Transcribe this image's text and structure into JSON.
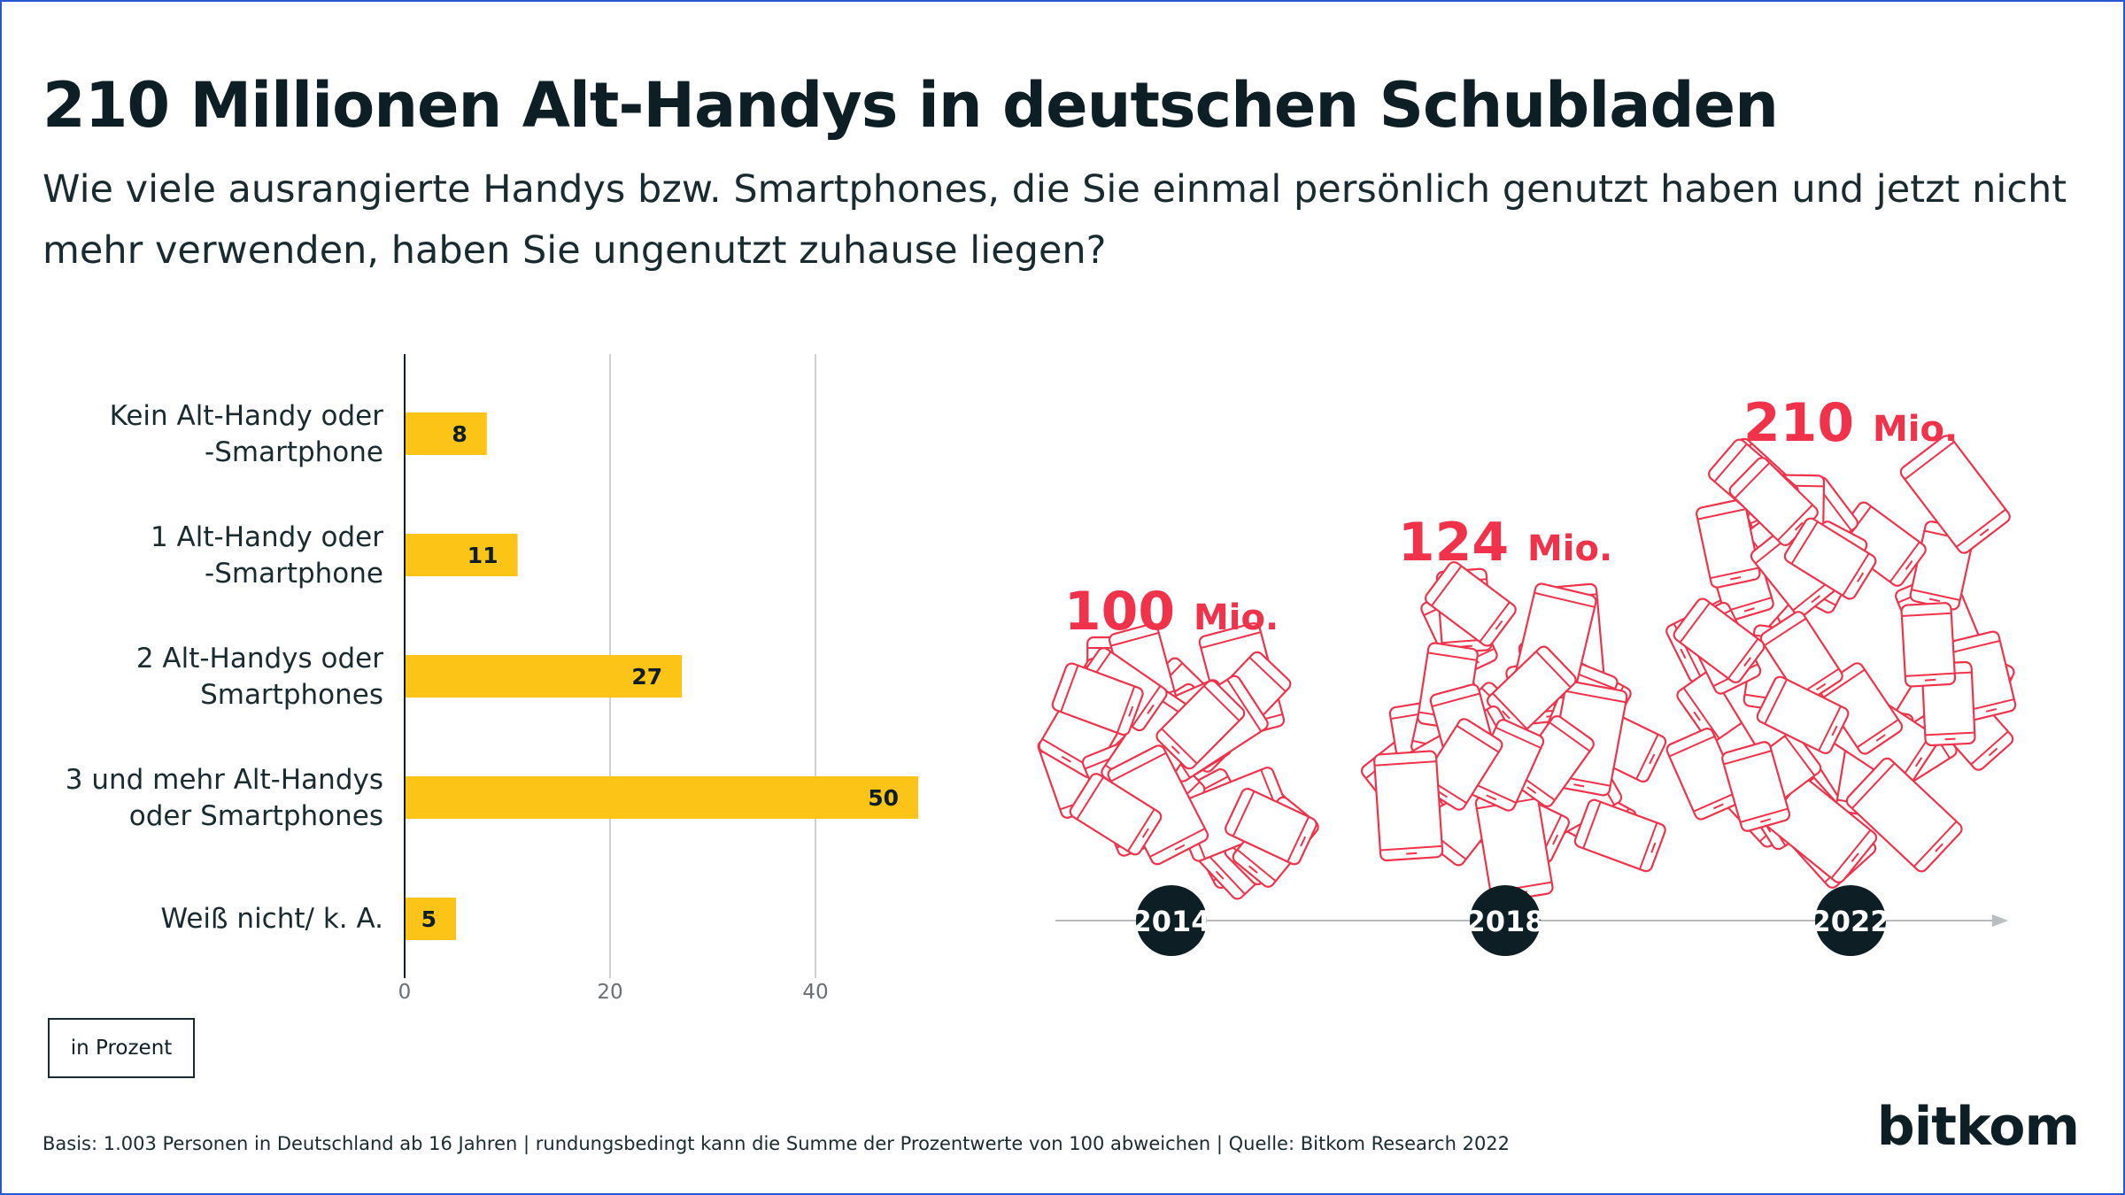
{
  "title": "210 Millionen Alt-Handys in deutschen Schubladen",
  "subtitle": "Wie viele ausrangierte Handys bzw. Smartphones, die Sie einmal persönlich genutzt haben und jetzt nicht mehr verwenden, haben Sie ungenutzt zuhause liegen?",
  "unit_label": "in Prozent",
  "footnote": "Basis: 1.003 Personen in Deutschland ab 16 Jahren | rundungsbedingt kann die Summe der Prozentwerte von 100 abweichen | Quelle: Bitkom Research 2022",
  "logo_text": "bitkom",
  "colors": {
    "bar": "#fdc418",
    "accent": "#f0324b",
    "dark": "#0d1f24",
    "grid": "#d2d2d2"
  },
  "chart_data": [
    {
      "type": "bar",
      "orientation": "horizontal",
      "categories": [
        [
          "Kein Alt-Handy oder",
          "-Smartphone"
        ],
        [
          "1 Alt-Handy oder",
          "-Smartphone"
        ],
        [
          "2 Alt-Handys oder",
          "Smartphones"
        ],
        [
          "3 und mehr Alt-Handys",
          "oder Smartphones"
        ],
        [
          "Weiß nicht/ k. A."
        ]
      ],
      "values": [
        8,
        11,
        27,
        50,
        5
      ],
      "xticks": [
        0,
        20,
        40
      ],
      "xlim": [
        0,
        60
      ],
      "grid": true,
      "unit": "in Prozent"
    },
    {
      "type": "bar",
      "categories": [
        "2014",
        "2018",
        "2022"
      ],
      "values": [
        100,
        124,
        210
      ],
      "value_labels": [
        {
          "num": "100",
          "unit": "Mio."
        },
        {
          "num": "124",
          "unit": "Mio."
        },
        {
          "num": "210",
          "unit": "Mio."
        }
      ]
    }
  ]
}
